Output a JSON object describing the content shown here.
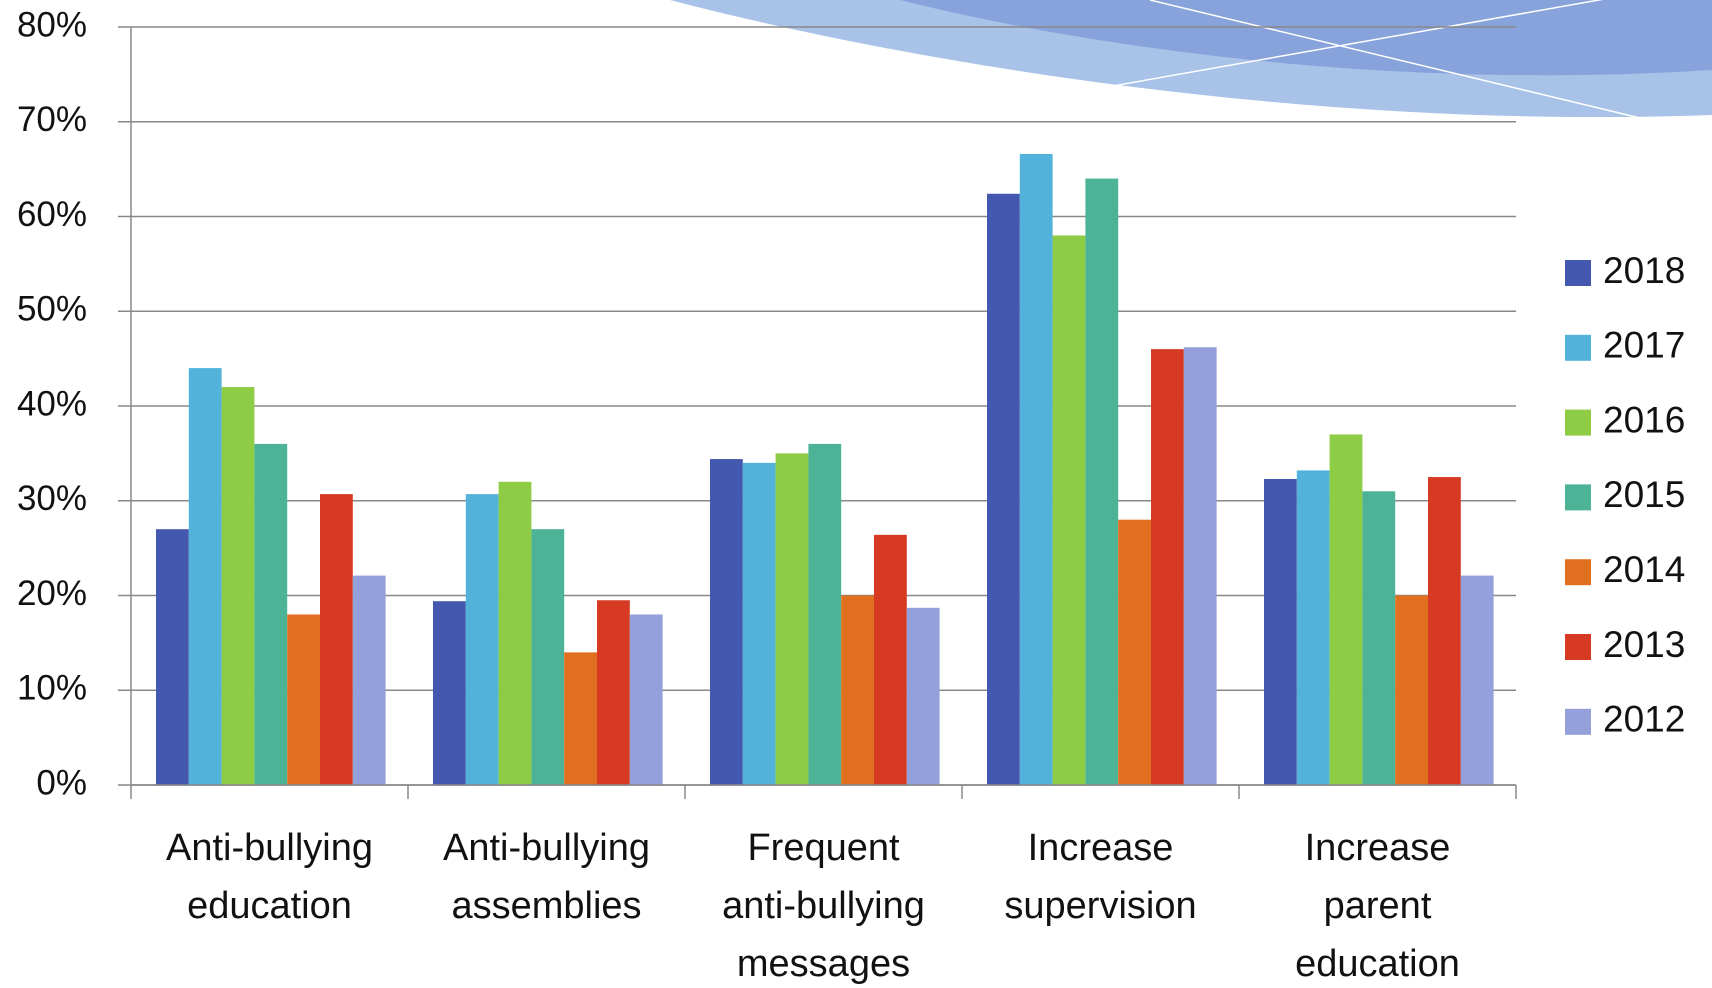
{
  "chart_data": {
    "type": "bar",
    "categories": [
      "Anti-bullying\neducation",
      "Anti-bullying\nassemblies",
      "Frequent\nanti-bullying\nmessages",
      "Increase\nsupervision",
      "Increase\nparent\neducation"
    ],
    "series": [
      {
        "name": "2018",
        "color": "#4358ae",
        "values": [
          27,
          19.4,
          34.4,
          62.4,
          32.3
        ]
      },
      {
        "name": "2017",
        "color": "#52b2d9",
        "values": [
          44,
          30.7,
          34,
          66.6,
          33.2
        ]
      },
      {
        "name": "2016",
        "color": "#8fcc45",
        "values": [
          42,
          32,
          35,
          58,
          37
        ]
      },
      {
        "name": "2015",
        "color": "#4db397",
        "values": [
          36,
          27,
          36,
          64,
          31
        ]
      },
      {
        "name": "2014",
        "color": "#e07020",
        "values": [
          18,
          14,
          20,
          28,
          20
        ]
      },
      {
        "name": "2013",
        "color": "#d63a22",
        "values": [
          30.7,
          19.5,
          26.4,
          46,
          32.5
        ]
      },
      {
        "name": "2012",
        "color": "#93a0d9",
        "values": [
          22.1,
          18,
          18.7,
          46.2,
          22.1
        ]
      }
    ],
    "ylim": [
      0,
      80
    ],
    "yticks": [
      {
        "value": 0,
        "label": "0%"
      },
      {
        "value": 10,
        "label": "10%"
      },
      {
        "value": 20,
        "label": "20%"
      },
      {
        "value": 30,
        "label": "30%"
      },
      {
        "value": 40,
        "label": "40%"
      },
      {
        "value": 50,
        "label": "50%"
      },
      {
        "value": 60,
        "label": "60%"
      },
      {
        "value": 70,
        "label": "70%"
      },
      {
        "value": 80,
        "label": "80%"
      }
    ],
    "grid": true,
    "legend": "right"
  }
}
